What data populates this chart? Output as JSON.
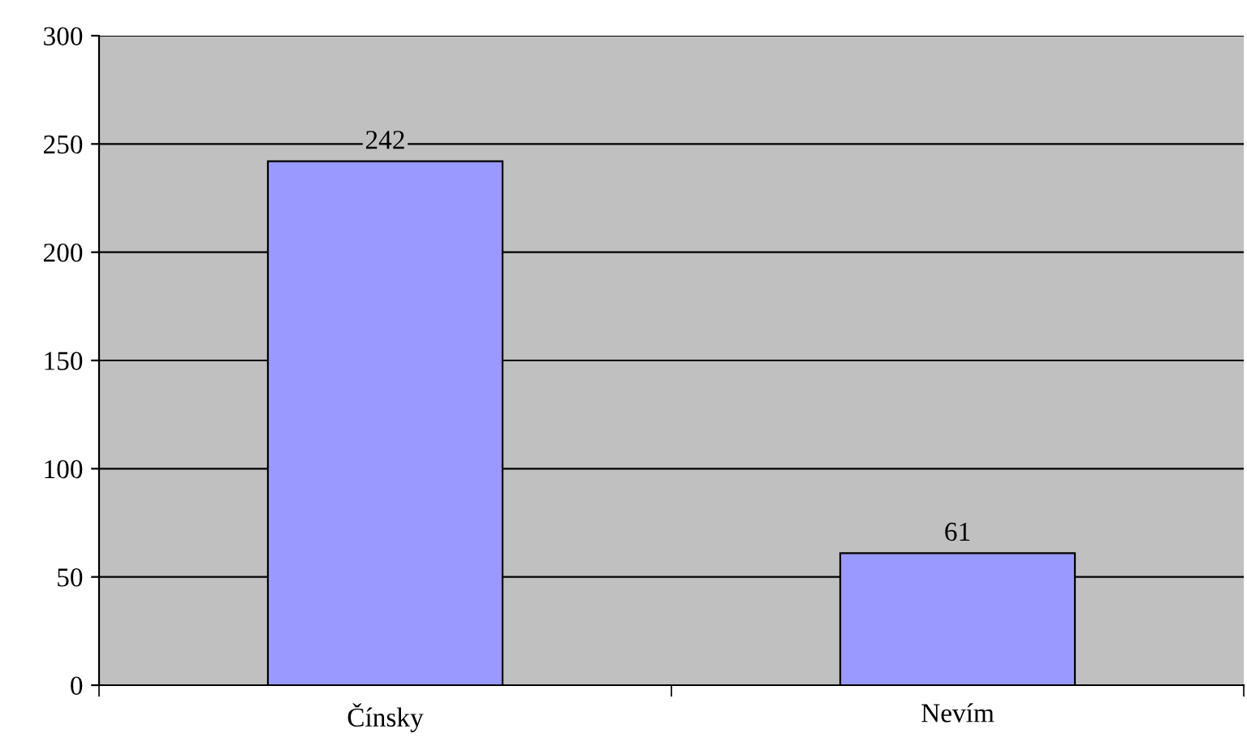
{
  "chart_data": {
    "type": "bar",
    "categories": [
      "Čínsky",
      "Nevím"
    ],
    "values": [
      242,
      61
    ],
    "color": "#9999ff",
    "ylim": [
      0,
      300
    ],
    "yticks": [
      0,
      50,
      100,
      150,
      200,
      250,
      300
    ],
    "grid": "y",
    "data_labels": true,
    "legend": false
  }
}
